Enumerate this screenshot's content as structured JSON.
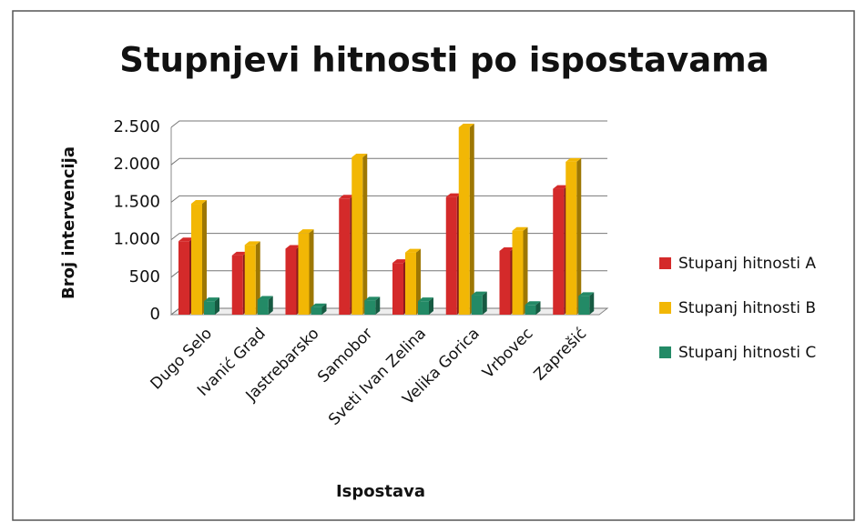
{
  "chart_data": {
    "type": "bar3d",
    "title": "Stupnjevi hitnosti po ispostavama",
    "x_label": "Ispostava",
    "y_label": "Broj intervencija",
    "categories": [
      "Dugo Selo",
      "Ivanić Grad",
      "Jastrebarsko",
      "Samobor",
      "Sveti Ivan Zelina",
      "Velika Gorica",
      "Vrbovec",
      "Zaprešić"
    ],
    "series": [
      {
        "name": "Stupanj hitnosti A",
        "color": "#d42a2a",
        "values": [
          980,
          790,
          880,
          1550,
          690,
          1570,
          850,
          1680
        ]
      },
      {
        "name": "Stupanj hitnosti B",
        "color": "#f2b705",
        "values": [
          1480,
          930,
          1090,
          2100,
          830,
          2500,
          1120,
          2040
        ]
      },
      {
        "name": "Stupanj hitnosti C",
        "color": "#238a66",
        "values": [
          180,
          200,
          100,
          190,
          180,
          260,
          130,
          250
        ]
      }
    ],
    "ylim": [
      0,
      2500
    ],
    "yticks": [
      0,
      500,
      {
        "value": 1000,
        "label": "1.000"
      },
      {
        "value": 1500,
        "label": "1.500"
      },
      {
        "value": 2000,
        "label": "2.000"
      },
      {
        "value": 2500,
        "label": "2.500"
      }
    ],
    "grid": true,
    "legend": "right"
  }
}
